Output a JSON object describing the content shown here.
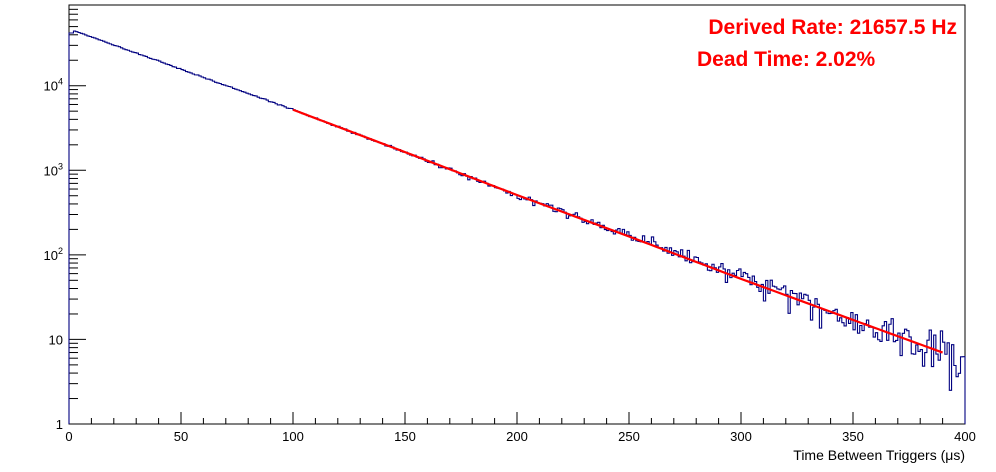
{
  "chart_data": {
    "type": "line",
    "title": "",
    "xlabel": "Time Between Triggers (μs)",
    "ylabel": "",
    "xlim": [
      0,
      400
    ],
    "ylim": [
      1,
      90000
    ],
    "log_y": true,
    "grid": false,
    "legend": "none",
    "x_ticks": [
      0,
      50,
      100,
      150,
      200,
      250,
      300,
      350,
      400
    ],
    "x_tick_labels": [
      "0",
      "50",
      "100",
      "150",
      "200",
      "250",
      "300",
      "350",
      "400"
    ],
    "y_ticks": [
      1,
      10,
      100,
      1000,
      10000
    ],
    "y_tick_labels": [
      {
        "base": "1",
        "exp": ""
      },
      {
        "base": "10",
        "exp": ""
      },
      {
        "base": "10",
        "exp": "2"
      },
      {
        "base": "10",
        "exp": "3"
      },
      {
        "base": "10",
        "exp": "4"
      }
    ],
    "histogram": {
      "color": "#000080",
      "bin_width": 1,
      "x_start": 0,
      "x_end": 400,
      "dead_time_bins": 2,
      "dead_time_value": 42000,
      "anchor_points": [
        [
          2,
          45000
        ],
        [
          100,
          5200
        ],
        [
          200,
          510
        ],
        [
          300,
          55
        ],
        [
          350,
          17
        ],
        [
          390,
          7
        ]
      ]
    },
    "fit": {
      "color": "#ff0000",
      "x_start": 100,
      "x_end": 390,
      "points": [
        [
          100,
          5200
        ],
        [
          150,
          1640
        ],
        [
          200,
          510
        ],
        [
          250,
          165
        ],
        [
          300,
          52
        ],
        [
          350,
          17
        ],
        [
          390,
          7
        ]
      ]
    },
    "annotations": [
      {
        "text": "Derived Rate: 21657.5 Hz",
        "color": "#ff0000"
      },
      {
        "text": "Dead Time: 2.02%",
        "color": "#ff0000"
      }
    ]
  }
}
